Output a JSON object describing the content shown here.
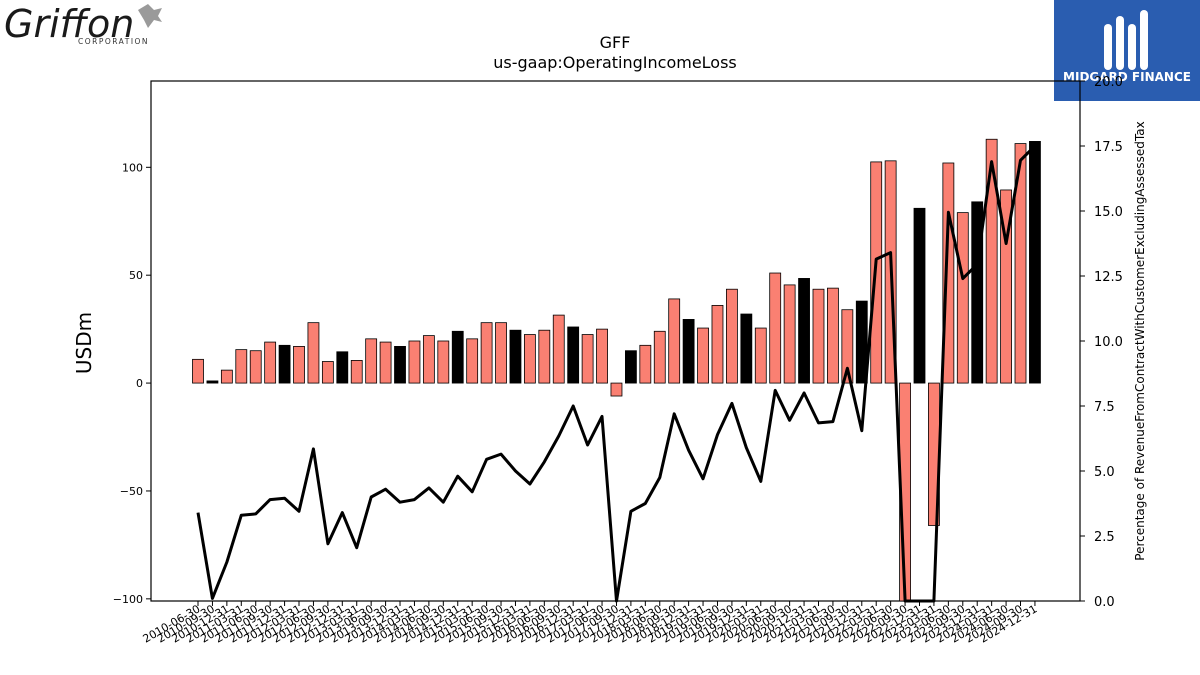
{
  "branding": {
    "left_logo_text": "Griffon",
    "left_logo_subtext": "CORPORATION",
    "right_logo_text": "MIDGARD FINANCE"
  },
  "chart_data": {
    "type": "bar",
    "title": "GFF",
    "subtitle": "us-gaap:OperatingIncomeLoss",
    "ylabel": "USDm",
    "y2label": "Percentage of RevenueFromContractWithCustomerExcludingAssessedTax",
    "ylim": [
      -101,
      140
    ],
    "y2lim": [
      0.0,
      20.0
    ],
    "yticks": [
      -100,
      -50,
      0,
      50,
      100
    ],
    "y2ticks": [
      "0.0",
      "2.5",
      "5.0",
      "7.5",
      "10.0",
      "12.5",
      "15.0",
      "17.5",
      "20.0"
    ],
    "colors": {
      "quarter": "#fa8072",
      "fiscal_year_end": "#000000",
      "line": "#000000"
    },
    "categories": [
      "2010-06-30",
      "2010-09-30",
      "2010-12-31",
      "2011-03-31",
      "2011-06-30",
      "2011-09-30",
      "2011-12-31",
      "2012-03-31",
      "2012-06-30",
      "2012-09-30",
      "2012-12-31",
      "2013-03-31",
      "2013-06-30",
      "2013-09-30",
      "2013-12-31",
      "2014-03-31",
      "2014-06-30",
      "2014-09-30",
      "2014-12-31",
      "2015-03-31",
      "2015-06-30",
      "2015-09-30",
      "2015-12-31",
      "2016-03-31",
      "2016-06-30",
      "2016-09-30",
      "2016-12-31",
      "2017-03-31",
      "2017-06-30",
      "2017-09-30",
      "2017-12-31",
      "2018-03-31",
      "2018-06-30",
      "2018-09-30",
      "2018-12-31",
      "2019-03-31",
      "2019-06-30",
      "2019-09-30",
      "2019-12-31",
      "2020-03-31",
      "2020-06-30",
      "2020-09-30",
      "2020-12-31",
      "2021-03-31",
      "2021-06-30",
      "2021-09-30",
      "2021-12-31",
      "2022-03-31",
      "2022-06-30",
      "2022-09-30",
      "2022-12-31",
      "2023-03-31",
      "2023-06-30",
      "2023-09-30",
      "2023-12-31",
      "2024-03-31",
      "2024-06-30",
      "2024-09-30",
      "2024-12-31"
    ],
    "values": [
      11,
      1,
      6,
      15.5,
      15,
      19,
      17.5,
      17,
      28,
      10,
      14.5,
      10.5,
      20.5,
      19,
      17,
      19.5,
      22,
      19.5,
      24,
      20.5,
      28,
      28,
      24.5,
      22.5,
      24.5,
      31.5,
      26,
      22.5,
      25,
      -6,
      15,
      17.5,
      24,
      39,
      29.5,
      25.5,
      36,
      43.5,
      32,
      25.5,
      51,
      45.5,
      48.5,
      43.5,
      44,
      34,
      38,
      102.5,
      103,
      -101,
      81,
      -66,
      102,
      79,
      84,
      113,
      89.5,
      111,
      112
    ],
    "fiscal_year_end": [
      false,
      true,
      false,
      false,
      false,
      false,
      true,
      false,
      false,
      false,
      true,
      false,
      false,
      false,
      true,
      false,
      false,
      false,
      true,
      false,
      false,
      false,
      true,
      false,
      false,
      false,
      true,
      false,
      false,
      false,
      true,
      false,
      false,
      false,
      true,
      false,
      false,
      false,
      true,
      false,
      false,
      false,
      true,
      false,
      false,
      false,
      true,
      false,
      false,
      false,
      true,
      false,
      false,
      false,
      true,
      false,
      false,
      false,
      true
    ],
    "pct_values": [
      3.4,
      0.1,
      1.5,
      3.3,
      3.35,
      3.9,
      3.95,
      3.45,
      5.85,
      2.2,
      3.4,
      2.05,
      4.0,
      4.3,
      3.8,
      3.9,
      4.35,
      3.8,
      4.8,
      4.2,
      5.45,
      5.65,
      5.0,
      4.5,
      5.35,
      6.35,
      7.5,
      6.0,
      7.1,
      -0.1,
      3.45,
      3.75,
      4.75,
      7.2,
      5.8,
      4.7,
      6.4,
      7.6,
      5.9,
      4.6,
      8.1,
      6.95,
      8.0,
      6.85,
      6.9,
      8.95,
      6.55,
      13.15,
      13.4,
      -0.1,
      -0.1,
      -0.1,
      14.95,
      12.4,
      12.95,
      16.9,
      13.75,
      16.95,
      17.5
    ]
  }
}
